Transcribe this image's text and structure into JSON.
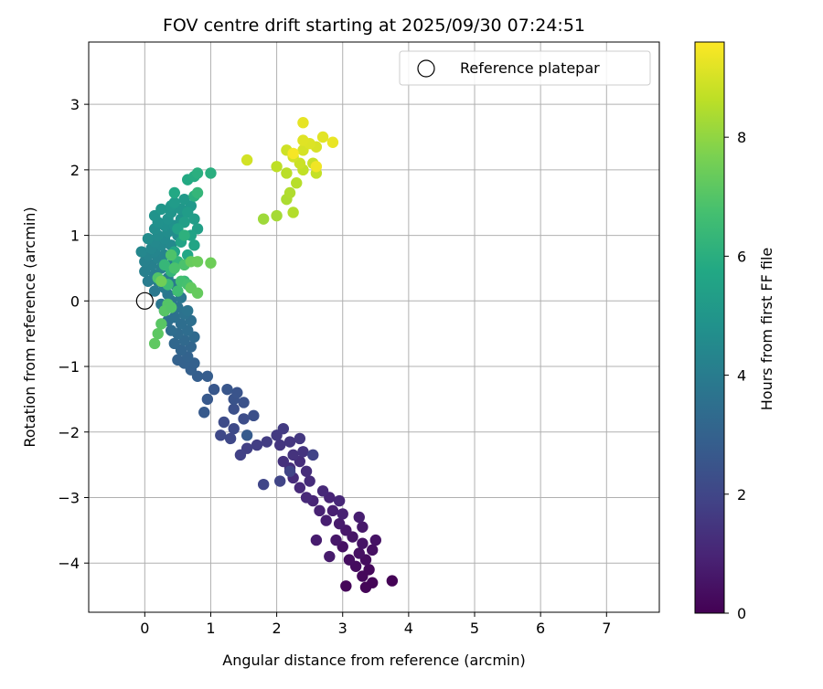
{
  "chart_data": {
    "type": "scatter",
    "title": "FOV centre drift starting at 2025/09/30 07:24:51",
    "xlabel": "Angular distance from reference (arcmin)",
    "ylabel": "Rotation from reference (arcmin)",
    "xlim": [
      -0.85,
      7.8
    ],
    "ylim": [
      -4.75,
      3.95
    ],
    "xticks": [
      0,
      1,
      2,
      3,
      4,
      5,
      6,
      7
    ],
    "yticks": [
      -4,
      -3,
      -2,
      -1,
      0,
      1,
      2,
      3
    ],
    "grid": true,
    "legend": {
      "position": "top-right",
      "entries": [
        "Reference platepar"
      ]
    },
    "reference_point": {
      "name": "Reference platepar",
      "x": 0.0,
      "y": 0.0
    },
    "colorbar": {
      "label": "Hours from first FF file",
      "range": [
        0,
        9.6
      ],
      "ticks": [
        0,
        2,
        4,
        6,
        8
      ],
      "colormap": "viridis"
    },
    "points": [
      {
        "x": 3.75,
        "y": -4.27,
        "h": 0.05
      },
      {
        "x": 3.45,
        "y": -4.3,
        "h": 0.1
      },
      {
        "x": 3.35,
        "y": -4.37,
        "h": 0.1
      },
      {
        "x": 3.05,
        "y": -4.35,
        "h": 0.15
      },
      {
        "x": 3.3,
        "y": -4.2,
        "h": 0.2
      },
      {
        "x": 3.4,
        "y": -4.1,
        "h": 0.2
      },
      {
        "x": 3.2,
        "y": -4.05,
        "h": 0.3
      },
      {
        "x": 3.35,
        "y": -3.95,
        "h": 0.3
      },
      {
        "x": 3.1,
        "y": -3.95,
        "h": 0.35
      },
      {
        "x": 3.25,
        "y": -3.85,
        "h": 0.4
      },
      {
        "x": 3.45,
        "y": -3.8,
        "h": 0.4
      },
      {
        "x": 3.0,
        "y": -3.75,
        "h": 0.45
      },
      {
        "x": 3.3,
        "y": -3.7,
        "h": 0.5
      },
      {
        "x": 3.5,
        "y": -3.65,
        "h": 0.5
      },
      {
        "x": 3.15,
        "y": -3.6,
        "h": 0.55
      },
      {
        "x": 2.9,
        "y": -3.65,
        "h": 0.6
      },
      {
        "x": 3.05,
        "y": -3.5,
        "h": 0.6
      },
      {
        "x": 3.3,
        "y": -3.45,
        "h": 0.65
      },
      {
        "x": 2.95,
        "y": -3.4,
        "h": 0.7
      },
      {
        "x": 2.8,
        "y": -3.9,
        "h": 0.7
      },
      {
        "x": 2.6,
        "y": -3.65,
        "h": 0.75
      },
      {
        "x": 3.25,
        "y": -3.3,
        "h": 0.8
      },
      {
        "x": 2.75,
        "y": -3.35,
        "h": 0.8
      },
      {
        "x": 2.85,
        "y": -3.2,
        "h": 0.85
      },
      {
        "x": 3.0,
        "y": -3.25,
        "h": 0.9
      },
      {
        "x": 2.65,
        "y": -3.2,
        "h": 0.9
      },
      {
        "x": 2.55,
        "y": -3.05,
        "h": 1.0
      },
      {
        "x": 2.8,
        "y": -3.0,
        "h": 1.0
      },
      {
        "x": 2.95,
        "y": -3.05,
        "h": 1.05
      },
      {
        "x": 2.45,
        "y": -3.0,
        "h": 1.1
      },
      {
        "x": 2.7,
        "y": -2.9,
        "h": 1.1
      },
      {
        "x": 2.35,
        "y": -2.85,
        "h": 1.15
      },
      {
        "x": 2.5,
        "y": -2.75,
        "h": 1.2
      },
      {
        "x": 2.25,
        "y": -2.7,
        "h": 1.2
      },
      {
        "x": 2.45,
        "y": -2.6,
        "h": 1.25
      },
      {
        "x": 2.2,
        "y": -2.55,
        "h": 1.3
      },
      {
        "x": 2.35,
        "y": -2.45,
        "h": 1.3
      },
      {
        "x": 2.1,
        "y": -2.45,
        "h": 1.35
      },
      {
        "x": 2.25,
        "y": -2.35,
        "h": 1.4
      },
      {
        "x": 2.4,
        "y": -2.3,
        "h": 1.45
      },
      {
        "x": 2.05,
        "y": -2.2,
        "h": 1.5
      },
      {
        "x": 2.2,
        "y": -2.15,
        "h": 1.5
      },
      {
        "x": 2.35,
        "y": -2.1,
        "h": 1.55
      },
      {
        "x": 2.0,
        "y": -2.05,
        "h": 1.6
      },
      {
        "x": 2.1,
        "y": -1.95,
        "h": 1.65
      },
      {
        "x": 1.85,
        "y": -2.15,
        "h": 1.7
      },
      {
        "x": 1.7,
        "y": -2.2,
        "h": 1.75
      },
      {
        "x": 1.55,
        "y": -2.25,
        "h": 1.8
      },
      {
        "x": 1.45,
        "y": -2.35,
        "h": 1.85
      },
      {
        "x": 2.55,
        "y": -2.35,
        "h": 1.9
      },
      {
        "x": 2.2,
        "y": -2.6,
        "h": 1.95
      },
      {
        "x": 2.05,
        "y": -2.75,
        "h": 1.95
      },
      {
        "x": 1.8,
        "y": -2.8,
        "h": 2.0
      },
      {
        "x": 1.3,
        "y": -2.1,
        "h": 2.05
      },
      {
        "x": 1.15,
        "y": -2.05,
        "h": 2.1
      },
      {
        "x": 1.35,
        "y": -1.95,
        "h": 2.15
      },
      {
        "x": 1.2,
        "y": -1.85,
        "h": 2.2
      },
      {
        "x": 1.5,
        "y": -1.8,
        "h": 2.25
      },
      {
        "x": 1.65,
        "y": -1.75,
        "h": 2.3
      },
      {
        "x": 1.35,
        "y": -1.65,
        "h": 2.35
      },
      {
        "x": 1.5,
        "y": -1.55,
        "h": 2.4
      },
      {
        "x": 1.35,
        "y": -1.5,
        "h": 2.45
      },
      {
        "x": 1.4,
        "y": -1.4,
        "h": 2.5
      },
      {
        "x": 1.25,
        "y": -1.35,
        "h": 2.55
      },
      {
        "x": 1.05,
        "y": -1.35,
        "h": 2.6
      },
      {
        "x": 0.95,
        "y": -1.5,
        "h": 2.65
      },
      {
        "x": 0.9,
        "y": -1.7,
        "h": 2.7
      },
      {
        "x": 1.55,
        "y": -2.05,
        "h": 2.75
      },
      {
        "x": 0.95,
        "y": -1.15,
        "h": 2.8
      },
      {
        "x": 0.8,
        "y": -1.15,
        "h": 2.85
      },
      {
        "x": 0.7,
        "y": -1.05,
        "h": 2.9
      },
      {
        "x": 0.75,
        "y": -0.95,
        "h": 2.95
      },
      {
        "x": 0.6,
        "y": -0.95,
        "h": 3.0
      },
      {
        "x": 0.5,
        "y": -0.9,
        "h": 3.0
      },
      {
        "x": 0.65,
        "y": -0.85,
        "h": 3.05
      },
      {
        "x": 0.55,
        "y": -0.75,
        "h": 3.1
      },
      {
        "x": 0.7,
        "y": -0.7,
        "h": 3.15
      },
      {
        "x": 0.45,
        "y": -0.65,
        "h": 3.2
      },
      {
        "x": 0.6,
        "y": -0.6,
        "h": 3.25
      },
      {
        "x": 0.75,
        "y": -0.55,
        "h": 3.3
      },
      {
        "x": 0.5,
        "y": -0.5,
        "h": 3.35
      },
      {
        "x": 0.65,
        "y": -0.45,
        "h": 3.4
      },
      {
        "x": 0.4,
        "y": -0.45,
        "h": 3.4
      },
      {
        "x": 0.55,
        "y": -0.35,
        "h": 3.45
      },
      {
        "x": 0.35,
        "y": -0.3,
        "h": 3.5
      },
      {
        "x": 0.7,
        "y": -0.3,
        "h": 3.5
      },
      {
        "x": 0.45,
        "y": -0.25,
        "h": 3.55
      },
      {
        "x": 0.6,
        "y": -0.2,
        "h": 3.6
      },
      {
        "x": 0.3,
        "y": -0.15,
        "h": 3.6
      },
      {
        "x": 0.5,
        "y": -0.1,
        "h": 3.65
      },
      {
        "x": 0.65,
        "y": -0.15,
        "h": 3.7
      },
      {
        "x": 0.4,
        "y": 0.0,
        "h": 3.7
      },
      {
        "x": 0.25,
        "y": -0.05,
        "h": 3.75
      },
      {
        "x": 0.55,
        "y": 0.05,
        "h": 3.8
      },
      {
        "x": 0.35,
        "y": 0.1,
        "h": 3.8
      },
      {
        "x": 0.15,
        "y": 0.15,
        "h": 3.85
      },
      {
        "x": 0.3,
        "y": 0.2,
        "h": 3.9
      },
      {
        "x": 0.45,
        "y": 0.25,
        "h": 3.9
      },
      {
        "x": 0.2,
        "y": 0.3,
        "h": 3.95
      },
      {
        "x": 0.05,
        "y": 0.3,
        "h": 4.0
      },
      {
        "x": 0.35,
        "y": 0.35,
        "h": 4.0
      },
      {
        "x": 0.15,
        "y": 0.4,
        "h": 4.05
      },
      {
        "x": 0.0,
        "y": 0.45,
        "h": 4.1
      },
      {
        "x": 0.25,
        "y": 0.5,
        "h": 4.1
      },
      {
        "x": 0.1,
        "y": 0.55,
        "h": 4.15
      },
      {
        "x": 0.4,
        "y": 0.55,
        "h": 4.2
      },
      {
        "x": 0.0,
        "y": 0.6,
        "h": 4.2
      },
      {
        "x": 0.2,
        "y": 0.65,
        "h": 4.25
      },
      {
        "x": 0.05,
        "y": 0.7,
        "h": 4.3
      },
      {
        "x": 0.3,
        "y": 0.7,
        "h": 4.3
      },
      {
        "x": 0.15,
        "y": 0.75,
        "h": 4.35
      },
      {
        "x": -0.05,
        "y": 0.75,
        "h": 4.4
      },
      {
        "x": 0.1,
        "y": 0.8,
        "h": 4.4
      },
      {
        "x": 0.25,
        "y": 0.85,
        "h": 4.45
      },
      {
        "x": 0.4,
        "y": 0.85,
        "h": 4.5
      },
      {
        "x": 0.15,
        "y": 0.9,
        "h": 4.5
      },
      {
        "x": 0.3,
        "y": 0.95,
        "h": 4.55
      },
      {
        "x": 0.05,
        "y": 0.95,
        "h": 4.6
      },
      {
        "x": 0.2,
        "y": 1.0,
        "h": 4.6
      },
      {
        "x": 0.35,
        "y": 1.05,
        "h": 4.65
      },
      {
        "x": 0.5,
        "y": 1.0,
        "h": 4.7
      },
      {
        "x": 0.15,
        "y": 1.1,
        "h": 4.7
      },
      {
        "x": 0.3,
        "y": 1.15,
        "h": 4.75
      },
      {
        "x": 0.45,
        "y": 1.15,
        "h": 4.8
      },
      {
        "x": 0.2,
        "y": 1.2,
        "h": 4.8
      },
      {
        "x": 0.35,
        "y": 1.25,
        "h": 4.85
      },
      {
        "x": 0.55,
        "y": 1.25,
        "h": 4.9
      },
      {
        "x": 0.15,
        "y": 1.3,
        "h": 4.9
      },
      {
        "x": 0.4,
        "y": 1.35,
        "h": 4.95
      },
      {
        "x": 0.25,
        "y": 1.4,
        "h": 5.0
      },
      {
        "x": 0.55,
        "y": 1.4,
        "h": 5.0
      },
      {
        "x": 0.4,
        "y": 1.45,
        "h": 5.05
      },
      {
        "x": 0.7,
        "y": 1.45,
        "h": 5.1
      },
      {
        "x": 0.6,
        "y": 1.55,
        "h": 5.15
      },
      {
        "x": 0.45,
        "y": 1.5,
        "h": 5.2
      },
      {
        "x": 0.65,
        "y": 1.35,
        "h": 5.25
      },
      {
        "x": 0.75,
        "y": 1.25,
        "h": 5.3
      },
      {
        "x": 0.6,
        "y": 1.2,
        "h": 5.35
      },
      {
        "x": 0.8,
        "y": 1.1,
        "h": 5.4
      },
      {
        "x": 0.5,
        "y": 1.1,
        "h": 5.45
      },
      {
        "x": 0.7,
        "y": 1.0,
        "h": 5.5
      },
      {
        "x": 0.55,
        "y": 0.9,
        "h": 5.55
      },
      {
        "x": 0.75,
        "y": 0.85,
        "h": 5.6
      },
      {
        "x": 0.45,
        "y": 0.75,
        "h": 5.65
      },
      {
        "x": 0.65,
        "y": 0.7,
        "h": 5.7
      },
      {
        "x": 0.45,
        "y": 1.65,
        "h": 5.75
      },
      {
        "x": 0.65,
        "y": 1.85,
        "h": 5.8
      },
      {
        "x": 0.75,
        "y": 1.9,
        "h": 5.9
      },
      {
        "x": 0.8,
        "y": 1.95,
        "h": 6.0
      },
      {
        "x": 0.75,
        "y": 1.6,
        "h": 6.05
      },
      {
        "x": 0.6,
        "y": 1.0,
        "h": 6.1
      },
      {
        "x": 0.5,
        "y": 0.6,
        "h": 6.2
      },
      {
        "x": 0.4,
        "y": 0.45,
        "h": 6.3
      },
      {
        "x": 0.3,
        "y": 0.55,
        "h": 6.35
      },
      {
        "x": 0.6,
        "y": 0.3,
        "h": 6.4
      },
      {
        "x": 0.7,
        "y": 0.2,
        "h": 6.5
      },
      {
        "x": 0.35,
        "y": 0.25,
        "h": 6.55
      },
      {
        "x": 0.5,
        "y": 0.15,
        "h": 6.6
      },
      {
        "x": 1.0,
        "y": 1.95,
        "h": 6.0
      },
      {
        "x": 0.8,
        "y": 1.65,
        "h": 6.3
      },
      {
        "x": 0.55,
        "y": 0.3,
        "h": 6.7
      },
      {
        "x": 0.65,
        "y": 0.25,
        "h": 6.75
      },
      {
        "x": 0.45,
        "y": 0.5,
        "h": 6.8
      },
      {
        "x": 0.6,
        "y": 0.55,
        "h": 6.85
      },
      {
        "x": 0.4,
        "y": 0.7,
        "h": 6.9
      },
      {
        "x": 0.2,
        "y": 0.35,
        "h": 6.95
      },
      {
        "x": 0.35,
        "y": -0.05,
        "h": 7.0
      },
      {
        "x": 0.3,
        "y": -0.15,
        "h": 7.05
      },
      {
        "x": 0.4,
        "y": -0.1,
        "h": 7.0
      },
      {
        "x": 0.25,
        "y": -0.35,
        "h": 7.1
      },
      {
        "x": 0.2,
        "y": -0.5,
        "h": 7.15
      },
      {
        "x": 0.15,
        "y": -0.65,
        "h": 7.2
      },
      {
        "x": 0.7,
        "y": 0.2,
        "h": 7.25
      },
      {
        "x": 0.8,
        "y": 0.12,
        "h": 7.3
      },
      {
        "x": 0.7,
        "y": 0.6,
        "h": 7.35
      },
      {
        "x": 0.8,
        "y": 0.6,
        "h": 7.4
      },
      {
        "x": 1.0,
        "y": 0.58,
        "h": 7.45
      },
      {
        "x": 0.25,
        "y": 0.3,
        "h": 7.5
      },
      {
        "x": 1.8,
        "y": 1.25,
        "h": 8.2
      },
      {
        "x": 2.0,
        "y": 1.3,
        "h": 8.3
      },
      {
        "x": 2.15,
        "y": 1.55,
        "h": 8.4
      },
      {
        "x": 2.25,
        "y": 1.35,
        "h": 8.5
      },
      {
        "x": 2.2,
        "y": 1.65,
        "h": 8.45
      },
      {
        "x": 2.3,
        "y": 1.8,
        "h": 8.55
      },
      {
        "x": 2.15,
        "y": 1.95,
        "h": 8.6
      },
      {
        "x": 2.0,
        "y": 2.05,
        "h": 8.65
      },
      {
        "x": 2.4,
        "y": 2.0,
        "h": 8.7
      },
      {
        "x": 2.6,
        "y": 1.95,
        "h": 8.75
      },
      {
        "x": 2.55,
        "y": 2.1,
        "h": 8.8
      },
      {
        "x": 2.35,
        "y": 2.1,
        "h": 8.85
      },
      {
        "x": 2.15,
        "y": 2.3,
        "h": 8.9
      },
      {
        "x": 2.25,
        "y": 2.2,
        "h": 8.95
      },
      {
        "x": 1.55,
        "y": 2.15,
        "h": 8.95
      },
      {
        "x": 2.4,
        "y": 2.3,
        "h": 9.0
      },
      {
        "x": 2.6,
        "y": 2.35,
        "h": 9.05
      },
      {
        "x": 2.5,
        "y": 2.4,
        "h": 9.1
      },
      {
        "x": 2.4,
        "y": 2.45,
        "h": 9.15
      },
      {
        "x": 2.7,
        "y": 2.5,
        "h": 9.2
      },
      {
        "x": 2.85,
        "y": 2.42,
        "h": 9.3
      },
      {
        "x": 2.4,
        "y": 2.72,
        "h": 9.25
      },
      {
        "x": 2.6,
        "y": 2.05,
        "h": 9.4
      },
      {
        "x": 2.25,
        "y": 2.25,
        "h": 9.5
      }
    ]
  }
}
